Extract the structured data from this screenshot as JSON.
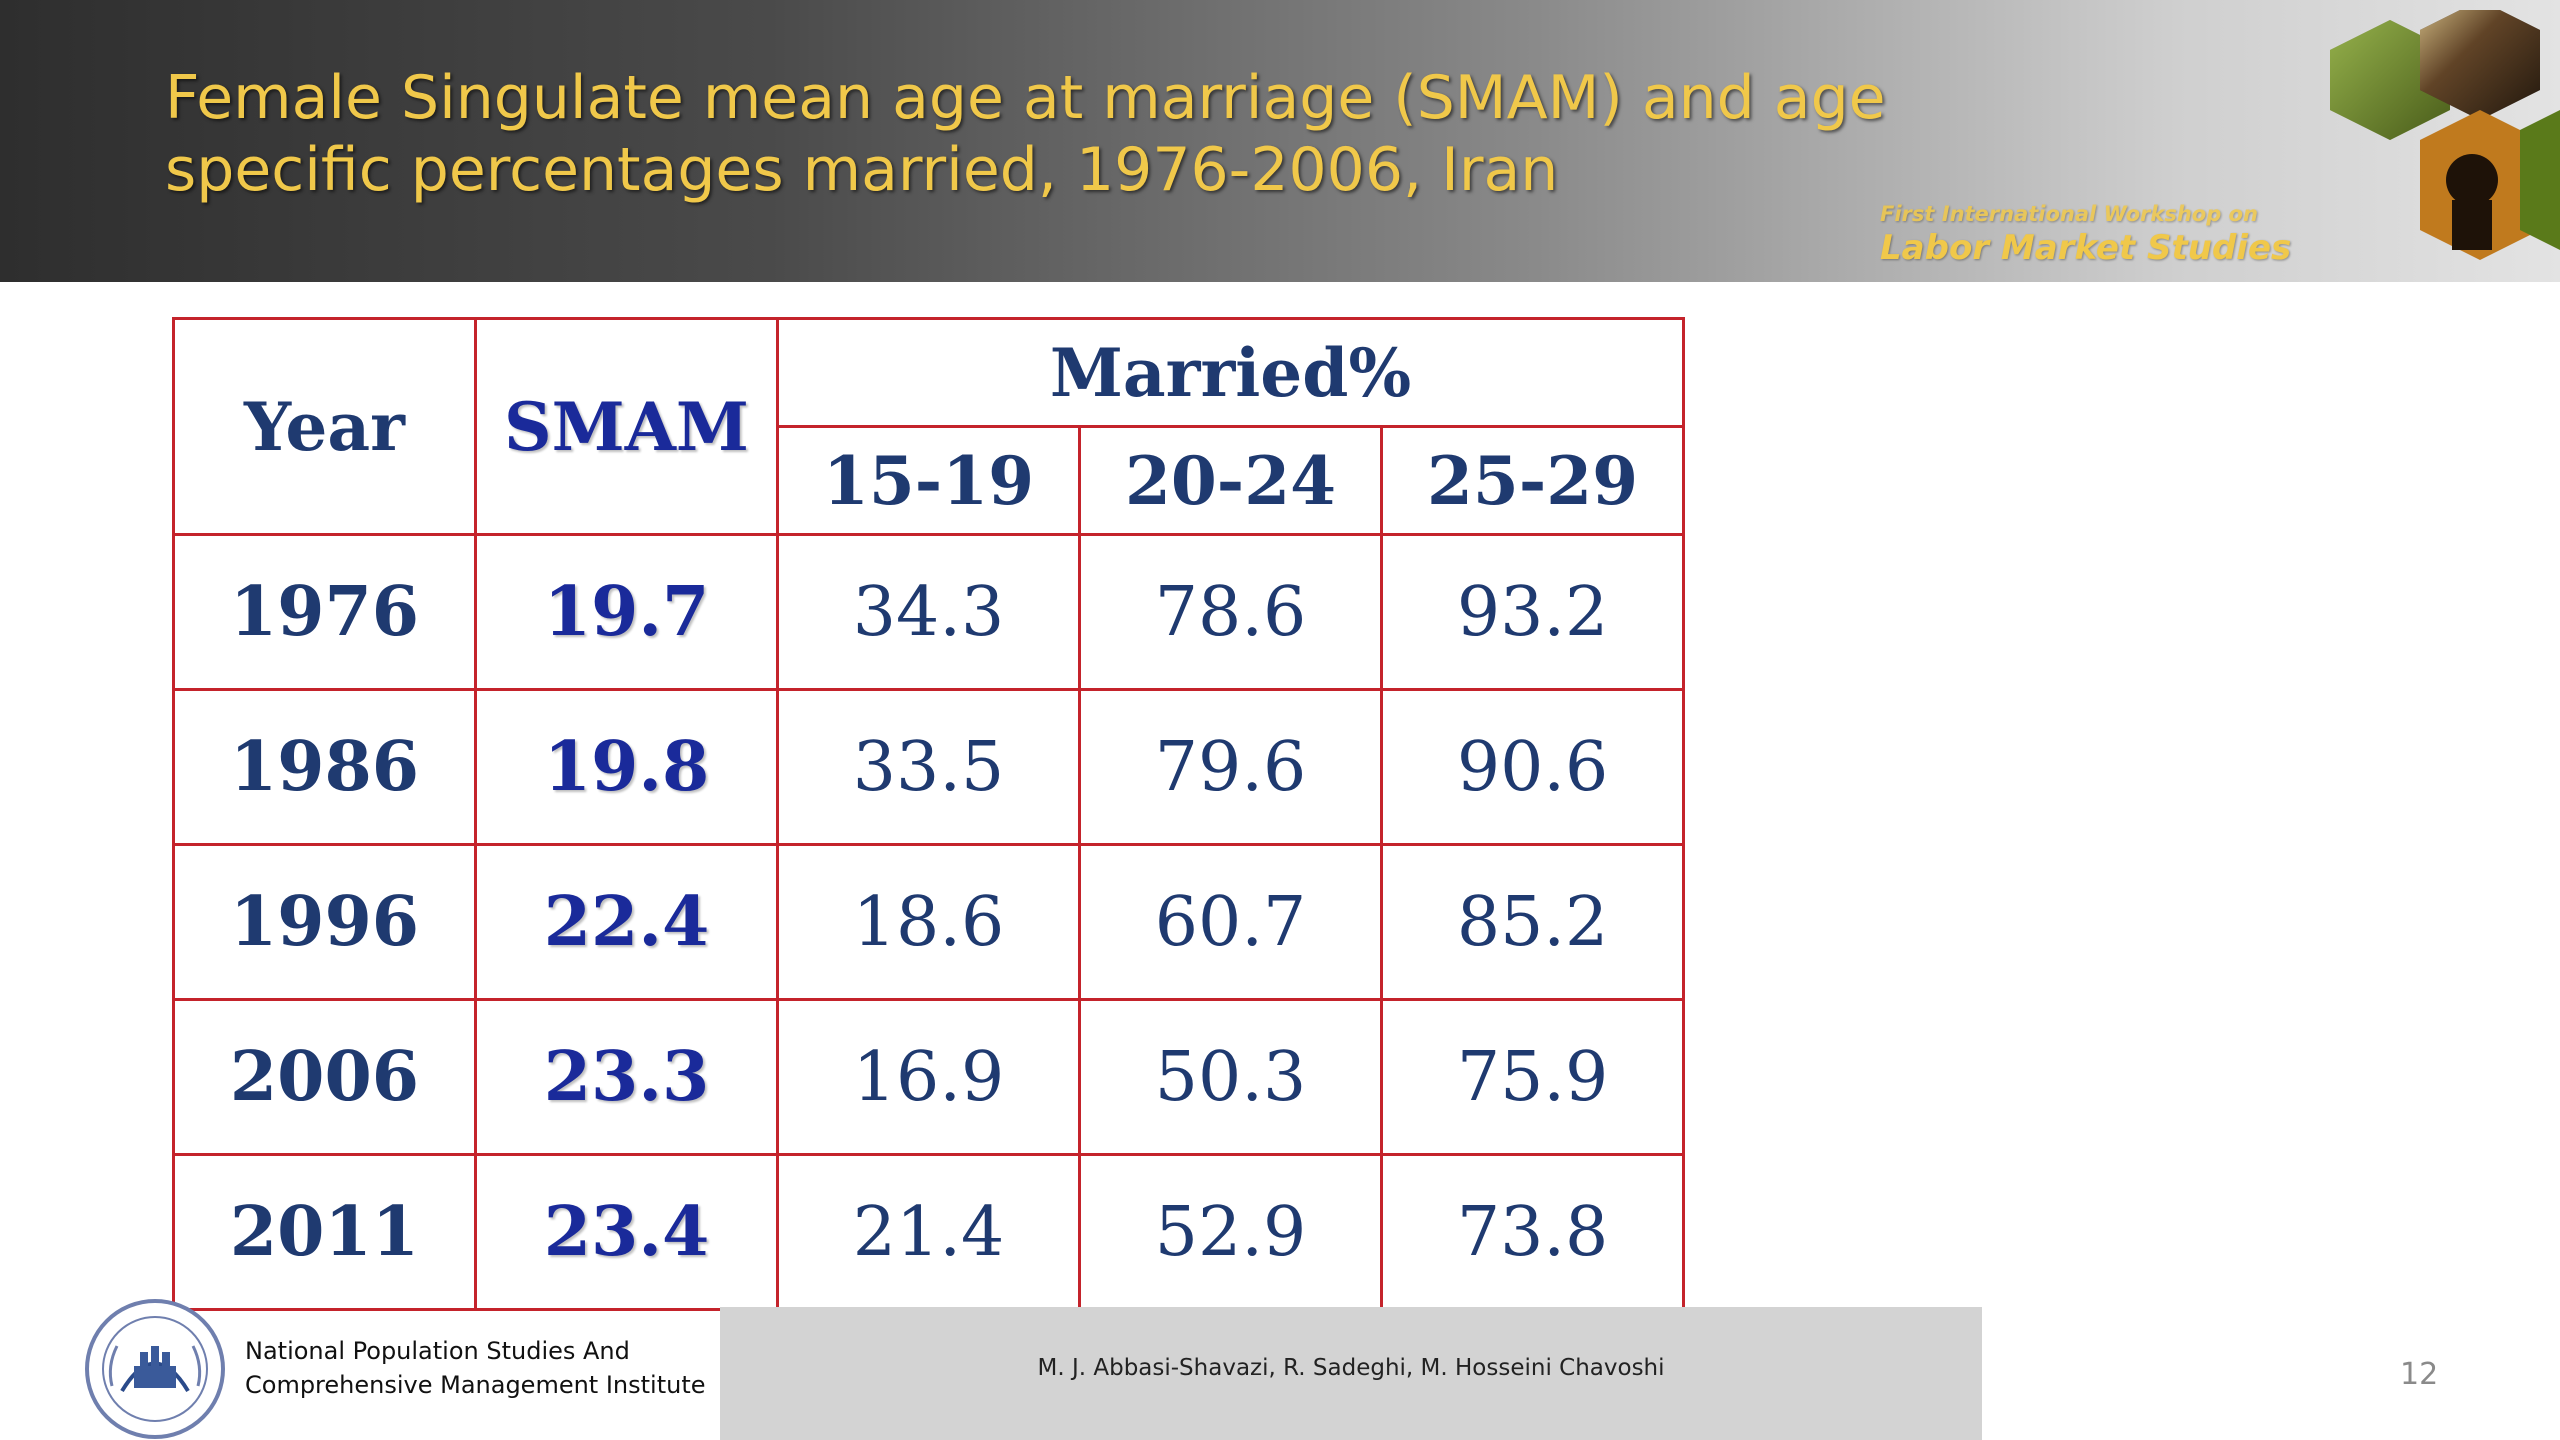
{
  "slide": {
    "title_line1": "Female Singulate mean age at marriage (SMAM) and age",
    "title_line2": "specific percentages married, 1976-2006, Iran",
    "workshop_line1": "First International Workshop on",
    "workshop_line2": "Labor Market Studies",
    "page_number": "12"
  },
  "table": {
    "headers": {
      "year": "Year",
      "smam": "SMAM",
      "married": "Married%",
      "age_groups": [
        "15-19",
        "20-24",
        "25-29"
      ]
    },
    "rows": [
      {
        "year": "1976",
        "smam": "19.7",
        "v1519": "34.3",
        "v2024": "78.6",
        "v2529": "93.2"
      },
      {
        "year": "1986",
        "smam": "19.8",
        "v1519": "33.5",
        "v2024": "79.6",
        "v2529": "90.6"
      },
      {
        "year": "1996",
        "smam": "22.4",
        "v1519": "18.6",
        "v2024": "60.7",
        "v2529": "85.2"
      },
      {
        "year": "2006",
        "smam": "23.3",
        "v1519": "16.9",
        "v2024": "50.3",
        "v2529": "75.9"
      },
      {
        "year": "2011",
        "smam": "23.4",
        "v1519": "21.4",
        "v2024": "52.9",
        "v2529": "73.8"
      }
    ]
  },
  "footer": {
    "institute_line1": "National Population Studies And",
    "institute_line2": "Comprehensive Management Institute",
    "authors": "M. J. Abbasi-Shavazi, R. Sadeghi, M. Hosseini Chavoshi"
  },
  "colors": {
    "title": "#f0c84a",
    "table_border": "#c4232b",
    "table_text": "#1f3a70",
    "smam_text": "#1a2a9a"
  }
}
